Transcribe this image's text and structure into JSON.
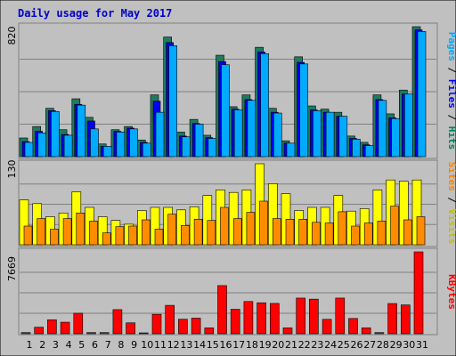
{
  "chart_data": {
    "type": "bar",
    "title": "Daily usage for May 2017",
    "categories": [
      "1",
      "2",
      "3",
      "4",
      "5",
      "6",
      "7",
      "8",
      "9",
      "10",
      "11",
      "12",
      "13",
      "14",
      "15",
      "16",
      "17",
      "18",
      "19",
      "20",
      "21",
      "22",
      "23",
      "24",
      "25",
      "26",
      "27",
      "28",
      "29",
      "30",
      "31"
    ],
    "weekend_days": [
      "6",
      "7",
      "13",
      "14",
      "20",
      "21",
      "27",
      "28"
    ],
    "panels": [
      {
        "id": "hits",
        "max_label": "820",
        "ylim": [
          0,
          820
        ],
        "side_label": [
          {
            "text": "Pages",
            "color": "#00aaff"
          },
          {
            "text": " / ",
            "color": "#000000"
          },
          {
            "text": "Files",
            "color": "#0000ff"
          },
          {
            "text": " / ",
            "color": "#000000"
          },
          {
            "text": "Hits",
            "color": "#00805c"
          }
        ],
        "series": [
          {
            "name": "Hits",
            "color": "#1f7a5e",
            "values": [
              118,
              190,
              305,
              170,
              365,
              248,
              80,
              170,
              190,
              105,
              390,
              755,
              155,
              235,
              135,
              640,
              315,
              390,
              690,
              305,
              100,
              630,
              320,
              300,
              280,
              130,
              90,
              390,
              270,
              420,
              820
            ]
          },
          {
            "name": "Files",
            "color": "#0000ee",
            "values": [
              95,
              160,
              290,
              140,
              330,
              225,
              65,
              160,
              180,
              90,
              350,
              720,
              130,
              210,
              120,
              600,
              300,
              360,
              660,
              280,
              85,
              595,
              295,
              280,
              255,
              115,
              75,
              360,
              245,
              395,
              800
            ]
          },
          {
            "name": "Pages",
            "color": "#00aaff",
            "values": [
              90,
              150,
              285,
              135,
              325,
              175,
              65,
              155,
              175,
              85,
              280,
              700,
              125,
              205,
              115,
              580,
              295,
              355,
              650,
              275,
              85,
              585,
              290,
              280,
              255,
              110,
              70,
              355,
              240,
              395,
              790
            ]
          }
        ]
      },
      {
        "id": "visits",
        "max_label": "130",
        "ylim": [
          0,
          130
        ],
        "side_label": [
          {
            "text": "Sites",
            "color": "#ff8000"
          },
          {
            "text": " / ",
            "color": "#000000"
          },
          {
            "text": "Visits",
            "color": "#c0c000"
          }
        ],
        "series": [
          {
            "name": "Visits",
            "color": "#ffff00",
            "values": [
              72,
              66,
              45,
              51,
              85,
              60,
              45,
              39,
              33,
              55,
              60,
              60,
              56,
              61,
              79,
              88,
              84,
              88,
              130,
              98,
              82,
              55,
              60,
              60,
              79,
              54,
              58,
              88,
              104,
              102,
              104
            ]
          },
          {
            "name": "Sites",
            "color": "#ff8c00",
            "values": [
              30,
              42,
              25,
              42,
              51,
              38,
              19,
              29,
              30,
              40,
              25,
              49,
              31,
              41,
              39,
              60,
              42,
              52,
              70,
              42,
              41,
              41,
              36,
              35,
              53,
              30,
              35,
              38,
              62,
              40,
              45
            ]
          }
        ]
      },
      {
        "id": "kbytes",
        "max_label": "7669",
        "ylim": [
          0,
          7669
        ],
        "side_label": [
          {
            "text": "KBytes",
            "color": "#ff0000"
          }
        ],
        "series": [
          {
            "name": "KBytes",
            "color": "#ff0000",
            "values": [
              110,
              610,
              1310,
              1080,
              1920,
              110,
              110,
              2260,
              1020,
              80,
              1820,
              2660,
              1360,
              1460,
              550,
              4510,
              2290,
              3020,
              2900,
              2840,
              550,
              3340,
              3240,
              1350,
              3340,
              1430,
              550,
              110,
              2830,
              2700,
              7669
            ]
          }
        ]
      }
    ],
    "grid": true,
    "gridlines_per_panel": 3,
    "colors": {
      "background": "#c0c0c0",
      "frame": "#7f7f7f",
      "weekday_tick": "#000000",
      "weekend_tick": "#00805c",
      "title": "#0000cc"
    }
  }
}
